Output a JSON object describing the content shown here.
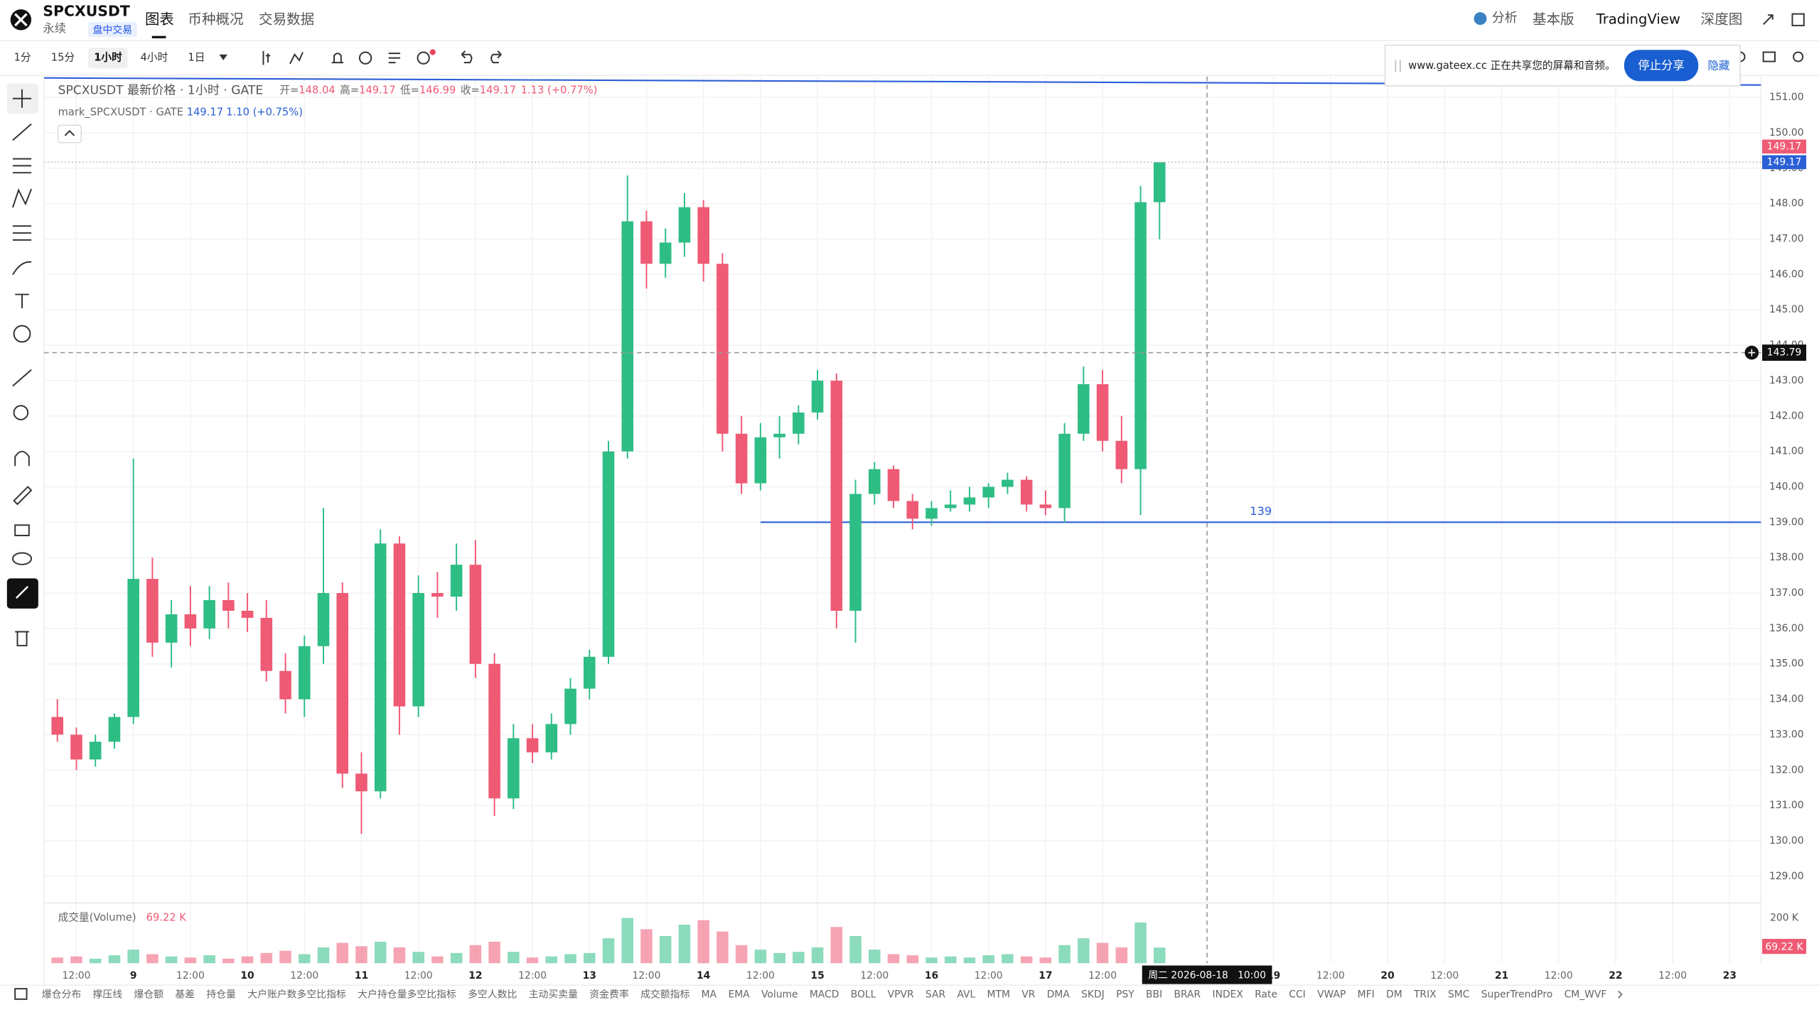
{
  "header": {
    "symbol": "SPCXUSDT",
    "contract": "永续",
    "badge": "盘中交易",
    "tabs": [
      "图表",
      "币种概况",
      "交易数据"
    ],
    "right_menu": [
      "分析",
      "基本版",
      "TradingView",
      "深度图"
    ]
  },
  "toolbar": {
    "intervals": [
      "1分",
      "15分",
      "1小时",
      "4小时",
      "1日"
    ]
  },
  "share_banner": {
    "text": "www.gateex.cc 正在共享您的屏幕和音频。",
    "stop": "停止分享",
    "hide": "隐藏"
  },
  "indicators": [
    "爆仓分布",
    "撑压线",
    "爆仓额",
    "基差",
    "持仓量",
    "大户账户数多空比指标",
    "大户持仓量多空比指标",
    "多空人数比",
    "主动买卖量",
    "资金费率",
    "成交额指标",
    "MA",
    "EMA",
    "Volume",
    "MACD",
    "BOLL",
    "VPVR",
    "SAR",
    "AVL",
    "MTM",
    "VR",
    "DMA",
    "SKDJ",
    "PSY",
    "BBI",
    "BRAR",
    "INDEX",
    "Rate",
    "CCI",
    "VWAP",
    "MFI",
    "DM",
    "TRIX",
    "SMC",
    "SuperTrendPro",
    "CM_WVF"
  ],
  "chart_data": {
    "type": "candlestick",
    "legend": {
      "title": "SPCXUSDT 最新价格 · 1小时 · GATE",
      "open_label": "开=",
      "high_label": "高=",
      "low_label": "低=",
      "close_label": "收=",
      "open": 148.04,
      "high": 149.17,
      "low": 146.99,
      "close": 149.17,
      "change": "1.13 (+0.77%)",
      "mark_title": "mark_SPCXUSDT · GATE",
      "mark_price": 149.17,
      "mark_change": "1.10 (+0.75%)"
    },
    "x": [
      8,
      12,
      16,
      20,
      24,
      28,
      32,
      36,
      40,
      44,
      48,
      52,
      56,
      60,
      64,
      68,
      72,
      76,
      80,
      84,
      88,
      92,
      96,
      100,
      104,
      108,
      112,
      116,
      120,
      124,
      128,
      132,
      136,
      140,
      144,
      148,
      152,
      156,
      160,
      164,
      168,
      172,
      176,
      180,
      184,
      188,
      192,
      196,
      200,
      204,
      208,
      212,
      216,
      220,
      224,
      228,
      232,
      236,
      240
    ],
    "open": [
      133.5,
      133.0,
      132.3,
      132.8,
      133.5,
      137.4,
      135.6,
      136.4,
      136.0,
      136.8,
      136.5,
      136.3,
      134.8,
      134.0,
      135.5,
      137.0,
      131.9,
      131.4,
      138.4,
      133.8,
      137.0,
      136.9,
      137.8,
      135.0,
      131.2,
      132.9,
      132.5,
      133.3,
      134.3,
      135.2,
      141.0,
      147.5,
      146.3,
      146.9,
      147.9,
      146.3,
      141.5,
      140.1,
      141.4,
      141.5,
      142.1,
      143.0,
      136.5,
      139.8,
      140.5,
      139.6,
      139.1,
      139.4,
      139.5,
      139.7,
      140.0,
      140.2,
      139.5,
      139.4,
      141.5,
      142.9,
      141.3,
      140.5,
      148.04
    ],
    "high": [
      134,
      133.2,
      133.0,
      133.6,
      140.8,
      138.0,
      136.8,
      137.2,
      137.2,
      137.3,
      137.0,
      136.8,
      135.3,
      135.8,
      139.4,
      137.3,
      132.5,
      138.8,
      138.6,
      137.5,
      137.6,
      138.4,
      138.5,
      135.3,
      133.3,
      133.3,
      133.6,
      134.6,
      135.4,
      141.3,
      148.8,
      147.8,
      147.3,
      148.3,
      148.1,
      146.6,
      142.0,
      141.8,
      142.0,
      142.3,
      143.3,
      143.2,
      140.2,
      140.7,
      140.6,
      139.8,
      139.6,
      139.9,
      140.0,
      140.1,
      140.4,
      140.3,
      139.9,
      141.8,
      143.4,
      143.3,
      142.0,
      148.5,
      149.17
    ],
    "low": [
      132.8,
      132.0,
      132.1,
      132.6,
      133.3,
      135.2,
      134.9,
      135.5,
      135.7,
      136.0,
      135.9,
      134.5,
      133.6,
      133.5,
      135.0,
      131.5,
      130.2,
      131.2,
      133.0,
      133.5,
      136.3,
      136.5,
      134.6,
      130.7,
      130.9,
      132.2,
      132.3,
      133.0,
      134.0,
      135.0,
      140.8,
      145.6,
      145.9,
      146.5,
      145.8,
      141.0,
      139.8,
      139.9,
      140.8,
      141.2,
      141.9,
      136.0,
      135.6,
      139.5,
      139.4,
      138.8,
      138.9,
      139.3,
      139.3,
      139.4,
      139.8,
      139.3,
      139.2,
      139.0,
      141.3,
      141.0,
      140.1,
      139.2,
      146.99
    ],
    "close": [
      133.0,
      132.3,
      132.8,
      133.5,
      137.4,
      135.6,
      136.4,
      136.0,
      136.8,
      136.5,
      136.3,
      134.8,
      134.0,
      135.5,
      137.0,
      131.9,
      131.4,
      138.4,
      133.8,
      137.0,
      136.9,
      137.8,
      135.0,
      131.2,
      132.9,
      132.5,
      133.3,
      134.3,
      135.2,
      141.0,
      147.5,
      146.3,
      146.9,
      147.9,
      146.3,
      141.5,
      140.1,
      141.4,
      141.5,
      142.1,
      143.0,
      136.5,
      139.8,
      140.5,
      139.6,
      139.1,
      139.4,
      139.5,
      139.7,
      140.0,
      140.2,
      139.5,
      139.4,
      141.5,
      142.9,
      141.3,
      140.5,
      148.04,
      149.17
    ],
    "volume": [
      25,
      30,
      20,
      35,
      60,
      40,
      30,
      25,
      35,
      20,
      30,
      45,
      55,
      40,
      70,
      90,
      75,
      95,
      70,
      50,
      30,
      45,
      80,
      95,
      50,
      25,
      30,
      40,
      45,
      110,
      200,
      150,
      120,
      170,
      190,
      140,
      80,
      60,
      45,
      50,
      70,
      160,
      120,
      60,
      40,
      35,
      25,
      30,
      25,
      35,
      40,
      30,
      25,
      80,
      110,
      90,
      70,
      180,
      69.22
    ],
    "up_color": "#2ebd85",
    "down_color": "#ef5a74",
    "xlim": [
      5.2,
      366.6
    ],
    "xticks": [
      {
        "value": 12,
        "label": "12:00"
      },
      {
        "value": 24,
        "label": "9"
      },
      {
        "value": 36,
        "label": "12:00"
      },
      {
        "value": 48,
        "label": "10"
      },
      {
        "value": 60,
        "label": "12:00"
      },
      {
        "value": 72,
        "label": "11"
      },
      {
        "value": 84,
        "label": "12:00"
      },
      {
        "value": 96,
        "label": "12"
      },
      {
        "value": 108,
        "label": "12:00"
      },
      {
        "value": 120,
        "label": "13"
      },
      {
        "value": 132,
        "label": "12:00"
      },
      {
        "value": 144,
        "label": "14"
      },
      {
        "value": 156,
        "label": "12:00"
      },
      {
        "value": 168,
        "label": "15"
      },
      {
        "value": 180,
        "label": "12:00"
      },
      {
        "value": 192,
        "label": "16"
      },
      {
        "value": 204,
        "label": "12:00"
      },
      {
        "value": 216,
        "label": "17"
      },
      {
        "value": 228,
        "label": "12:00"
      },
      {
        "value": 264,
        "label": "19"
      },
      {
        "value": 276,
        "label": "12:00"
      },
      {
        "value": 288,
        "label": "20"
      },
      {
        "value": 300,
        "label": "12:00"
      },
      {
        "value": 312,
        "label": "21"
      },
      {
        "value": 324,
        "label": "12:00"
      },
      {
        "value": 336,
        "label": "22"
      },
      {
        "value": 348,
        "label": "12:00"
      },
      {
        "value": 360,
        "label": "23"
      }
    ],
    "ylim": [
      128.28,
      151.59
    ],
    "yticks": [
      {
        "value": 129,
        "label": "129.00"
      },
      {
        "value": 130,
        "label": "130.00"
      },
      {
        "value": 131,
        "label": "131.00"
      },
      {
        "value": 132,
        "label": "132.00"
      },
      {
        "value": 133,
        "label": "133.00"
      },
      {
        "value": 134,
        "label": "134.00"
      },
      {
        "value": 135,
        "label": "135.00"
      },
      {
        "value": 136,
        "label": "136.00"
      },
      {
        "value": 137,
        "label": "137.00"
      },
      {
        "value": 138,
        "label": "138.00"
      },
      {
        "value": 139,
        "label": "139.00"
      },
      {
        "value": 140,
        "label": "140.00"
      },
      {
        "value": 141,
        "label": "141.00"
      },
      {
        "value": 142,
        "label": "142.00"
      },
      {
        "value": 143,
        "label": "143.00"
      },
      {
        "value": 144,
        "label": "144.00"
      },
      {
        "value": 145,
        "label": "145.00"
      },
      {
        "value": 146,
        "label": "146.00"
      },
      {
        "value": 147,
        "label": "147.00"
      },
      {
        "value": 148,
        "label": "148.00"
      },
      {
        "value": 149,
        "label": "149.00"
      },
      {
        "value": 150,
        "label": "150.00"
      },
      {
        "value": 151,
        "label": "151.00"
      }
    ],
    "volume_title": "成交量(Volume)",
    "volume_last_label": "69.22 K",
    "vlim": [
      0,
      261
    ],
    "vticks": [
      {
        "value": 200,
        "label": "200 K"
      }
    ],
    "last_price": 149.17,
    "crosshair": {
      "x": 250,
      "y": 143.79,
      "x_label": "周二 2026-08-18   10:00"
    },
    "lines": [
      {
        "x": [
          156,
          366.6
        ],
        "y": [
          139,
          139
        ],
        "label": "139"
      },
      {
        "x": [
          5.2,
          366.6
        ],
        "y": [
          151.55,
          151.35
        ]
      }
    ],
    "grid": true
  }
}
